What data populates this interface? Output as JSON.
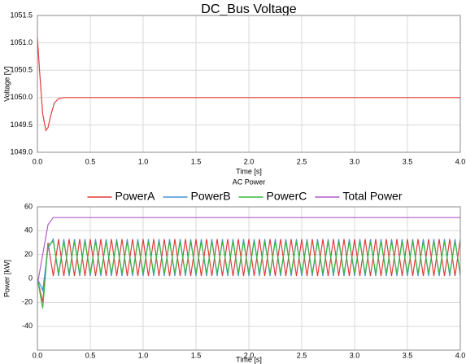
{
  "chart_data": [
    {
      "type": "line",
      "title": "DC_Bus Voltage",
      "xlabel": "Time [s]",
      "ylabel": "Voltage [V]",
      "x": [
        0,
        0.02,
        0.05,
        0.08,
        0.1,
        0.13,
        0.16,
        0.2,
        0.25,
        0.3,
        0.5,
        1,
        2,
        3,
        4
      ],
      "values": [
        1051.1,
        1050.5,
        1049.7,
        1049.4,
        1049.45,
        1049.7,
        1049.9,
        1049.98,
        1050,
        1050,
        1050,
        1050,
        1050,
        1050,
        1050
      ],
      "color": "#e03c3c",
      "xlim": [
        0,
        4
      ],
      "ylim": [
        1049,
        1051.5
      ],
      "xticks": [
        {
          "value": 0,
          "label": "0.0"
        },
        0.5,
        {
          "value": 1,
          "label": "1.0"
        },
        1.5,
        {
          "value": 2,
          "label": "2.0"
        },
        2.5,
        {
          "value": 3,
          "label": "3.0"
        },
        3.5,
        {
          "value": 4,
          "label": "4.0"
        }
      ],
      "yticks": [
        {
          "value": 1049,
          "label": "1049.0"
        },
        1049.5,
        {
          "value": 1050,
          "label": "1050.0"
        },
        1050.5,
        {
          "value": 1051,
          "label": "1051.0"
        },
        1051.5
      ],
      "grid": true
    },
    {
      "type": "line",
      "title": "AC Power",
      "xlabel": "Time [s]",
      "ylabel": "Power [kW]",
      "legend": "top",
      "x": [
        0,
        0.05,
        0.1,
        0.15,
        0.2,
        0.25,
        0.3,
        0.35,
        0.4,
        0.45,
        0.5,
        0.55,
        0.6,
        0.65,
        0.7,
        0.75,
        0.8,
        0.85,
        0.9,
        0.95,
        1,
        1.05,
        1.1,
        1.15,
        1.2,
        1.25,
        1.3,
        1.35,
        1.4,
        1.45,
        1.5,
        1.55,
        1.6,
        1.65,
        1.7,
        1.75,
        1.8,
        1.85,
        1.9,
        1.95,
        2,
        2.05,
        2.1,
        2.15,
        2.2,
        2.25,
        2.3,
        2.35,
        2.4,
        2.45,
        2.5,
        2.55,
        2.6,
        2.65,
        2.7,
        2.75,
        2.8,
        2.85,
        2.9,
        2.95,
        3,
        3.05,
        3.1,
        3.15,
        3.2,
        3.25,
        3.3,
        3.35,
        3.4,
        3.45,
        3.5,
        3.55,
        3.6,
        3.65,
        3.7,
        3.75,
        3.8,
        3.85,
        3.9,
        3.95,
        4
      ],
      "series": [
        {
          "name": "PowerA",
          "color": "#e03c3c",
          "values": [
            0,
            -20,
            30,
            2,
            33,
            2,
            33,
            2,
            33,
            2,
            33,
            2,
            33,
            2,
            33,
            2,
            33,
            2,
            33,
            2,
            33,
            2,
            33,
            2,
            33,
            2,
            33,
            2,
            33,
            2,
            33,
            2,
            33,
            2,
            33,
            2,
            33,
            2,
            33,
            2,
            33,
            2,
            33,
            2,
            33,
            2,
            33,
            2,
            33,
            2,
            33,
            2,
            33,
            2,
            33,
            2,
            33,
            2,
            33,
            2,
            33,
            2,
            33,
            2,
            33,
            2,
            33,
            2,
            33,
            2,
            33,
            2,
            33,
            2,
            33,
            2,
            33,
            2,
            33,
            2,
            33
          ]
        },
        {
          "name": "PowerB",
          "color": "#4c8fd6",
          "values": [
            0,
            -10,
            25,
            33,
            2,
            33,
            2,
            33,
            2,
            33,
            2,
            33,
            2,
            33,
            2,
            33,
            2,
            33,
            2,
            33,
            2,
            33,
            2,
            33,
            2,
            33,
            2,
            33,
            2,
            33,
            2,
            33,
            2,
            33,
            2,
            33,
            2,
            33,
            2,
            33,
            2,
            33,
            2,
            33,
            2,
            33,
            2,
            33,
            2,
            33,
            2,
            33,
            2,
            33,
            2,
            33,
            2,
            33,
            2,
            33,
            2,
            33,
            2,
            33,
            2,
            33,
            2,
            33,
            2,
            33,
            2,
            33,
            2,
            33,
            2,
            33,
            2,
            33,
            2,
            33,
            2
          ]
        },
        {
          "name": "PowerC",
          "color": "#3cb83c",
          "values": [
            0,
            -25,
            28,
            31,
            4,
            31,
            4,
            31,
            4,
            31,
            4,
            31,
            4,
            31,
            4,
            31,
            4,
            31,
            4,
            31,
            4,
            31,
            4,
            31,
            4,
            31,
            4,
            31,
            4,
            31,
            4,
            31,
            4,
            31,
            4,
            31,
            4,
            31,
            4,
            31,
            4,
            31,
            4,
            31,
            4,
            31,
            4,
            31,
            4,
            31,
            4,
            31,
            4,
            31,
            4,
            31,
            4,
            31,
            4,
            31,
            4,
            31,
            4,
            31,
            4,
            31,
            4,
            31,
            4,
            31,
            4,
            31,
            4,
            31,
            4,
            31,
            4,
            31,
            4,
            31,
            4
          ]
        },
        {
          "name": "Total Power",
          "color": "#b05cc8",
          "values": [
            -5,
            20,
            45,
            51,
            51,
            51,
            51,
            51,
            51,
            51,
            51,
            51,
            51,
            51,
            51,
            51,
            51,
            51,
            51,
            51,
            51,
            51,
            51,
            51,
            51,
            51,
            51,
            51,
            51,
            51,
            51,
            51,
            51,
            51,
            51,
            51,
            51,
            51,
            51,
            51,
            51,
            51,
            51,
            51,
            51,
            51,
            51,
            51,
            51,
            51,
            51,
            51,
            51,
            51,
            51,
            51,
            51,
            51,
            51,
            51,
            51,
            51,
            51,
            51,
            51,
            51,
            51,
            51,
            51,
            51,
            51,
            51,
            51,
            51,
            51,
            51,
            51,
            51,
            51,
            51,
            51
          ]
        }
      ],
      "xlim": [
        0,
        4
      ],
      "ylim": [
        -60,
        60
      ],
      "xticks": [
        {
          "value": 0,
          "label": "0.0"
        },
        0.5,
        {
          "value": 1,
          "label": "1.0"
        },
        1.5,
        {
          "value": 2,
          "label": "2.0"
        },
        2.5,
        {
          "value": 3,
          "label": "3.0"
        },
        3.5,
        {
          "value": 4,
          "label": "4.0"
        }
      ],
      "yticks": [
        -40,
        -20,
        0,
        20,
        40,
        60
      ],
      "grid": true
    }
  ]
}
